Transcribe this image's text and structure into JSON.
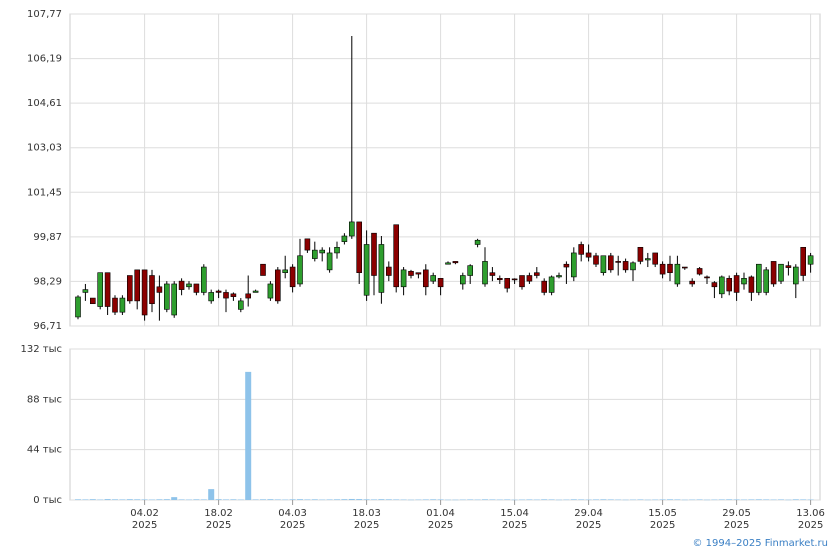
{
  "chart_data": {
    "type": "candlestick",
    "categories": [
      "22.01.2025",
      "23.01.2025",
      "24.01.2025",
      "27.01.2025",
      "28.01.2025",
      "29.01.2025",
      "30.01.2025",
      "31.01.2025",
      "03.02.2025",
      "04.02.2025",
      "05.02.2025",
      "06.02.2025",
      "07.02.2025",
      "10.02.2025",
      "11.02.2025",
      "12.02.2025",
      "13.02.2025",
      "14.02.2025",
      "17.02.2025",
      "18.02.2025",
      "19.02.2025",
      "20.02.2025",
      "21.02.2025",
      "24.02.2025",
      "25.02.2025",
      "26.02.2025",
      "27.02.2025",
      "28.02.2025",
      "03.03.2025",
      "04.03.2025",
      "05.03.2025",
      "06.03.2025",
      "07.03.2025",
      "10.03.2025",
      "11.03.2025",
      "12.03.2025",
      "13.03.2025",
      "14.03.2025",
      "17.03.2025",
      "18.03.2025",
      "19.03.2025",
      "20.03.2025",
      "21.03.2025",
      "24.03.2025",
      "25.03.2025",
      "26.03.2025",
      "27.03.2025",
      "28.03.2025",
      "31.03.2025",
      "01.04.2025",
      "02.04.2025",
      "03.04.2025",
      "04.04.2025",
      "07.04.2025",
      "08.04.2025",
      "09.04.2025",
      "10.04.2025",
      "11.04.2025",
      "14.04.2025",
      "15.04.2025",
      "16.04.2025",
      "17.04.2025",
      "18.04.2025",
      "21.04.2025",
      "22.04.2025",
      "23.04.2025",
      "24.04.2025",
      "25.04.2025",
      "28.04.2025",
      "29.04.2025",
      "30.04.2025",
      "02.05.2025",
      "05.05.2025",
      "06.05.2025",
      "07.05.2025",
      "08.05.2025",
      "12.05.2025",
      "13.05.2025",
      "14.05.2025",
      "15.05.2025",
      "16.05.2025",
      "19.05.2025",
      "20.05.2025",
      "21.05.2025",
      "22.05.2025",
      "23.05.2025",
      "26.05.2025",
      "27.05.2025",
      "28.05.2025",
      "29.05.2025",
      "30.05.2025",
      "02.06.2025",
      "03.06.2025",
      "04.06.2025",
      "05.06.2025",
      "06.06.2025",
      "09.06.2025",
      "10.06.2025",
      "11.06.2025",
      "13.06.2025"
    ],
    "open": [
      97.03,
      97.9,
      97.7,
      97.4,
      98.6,
      97.7,
      97.2,
      98.5,
      98.7,
      98.7,
      98.5,
      98.1,
      97.3,
      97.1,
      98.3,
      98.1,
      98.2,
      97.9,
      97.6,
      97.95,
      97.9,
      97.85,
      97.3,
      97.85,
      97.9,
      98.9,
      97.7,
      98.7,
      98.6,
      98.8,
      98.2,
      99.8,
      99.1,
      99.3,
      98.7,
      99.3,
      99.7,
      99.9,
      100.4,
      97.8,
      100.0,
      97.9,
      98.8,
      100.3,
      98.1,
      98.65,
      98.6,
      98.7,
      98.3,
      98.4,
      98.9,
      99.0,
      98.2,
      98.5,
      99.6,
      98.2,
      98.6,
      98.4,
      98.4,
      98.38,
      98.5,
      98.5,
      98.6,
      98.3,
      97.9,
      98.45,
      98.9,
      98.45,
      99.6,
      99.3,
      99.2,
      98.6,
      99.2,
      99.0,
      99.0,
      98.7,
      99.5,
      99.05,
      99.3,
      98.9,
      98.9,
      98.2,
      98.8,
      98.3,
      98.75,
      98.45,
      98.25,
      97.85,
      98.4,
      98.5,
      98.2,
      98.45,
      97.9,
      97.9,
      99.0,
      98.3,
      98.85,
      98.2,
      99.5,
      98.9
    ],
    "high": [
      97.8,
      98.2,
      97.7,
      98.6,
      98.6,
      97.8,
      97.8,
      98.5,
      98.7,
      98.7,
      98.7,
      98.5,
      98.3,
      98.3,
      98.4,
      98.3,
      98.2,
      98.9,
      98.0,
      98.0,
      98.0,
      97.9,
      97.7,
      98.5,
      98.0,
      98.9,
      98.3,
      98.8,
      99.2,
      98.9,
      99.8,
      99.8,
      99.7,
      99.5,
      99.5,
      99.7,
      100.0,
      106.99,
      100.4,
      100.1,
      100.0,
      99.9,
      99.0,
      100.3,
      98.8,
      98.7,
      98.6,
      98.9,
      98.6,
      98.4,
      99.0,
      99.0,
      98.6,
      98.9,
      99.8,
      99.5,
      98.8,
      98.5,
      98.4,
      98.4,
      98.5,
      98.6,
      98.8,
      98.4,
      98.5,
      98.6,
      99.0,
      99.5,
      99.7,
      99.6,
      99.3,
      99.2,
      99.3,
      99.2,
      99.1,
      99.0,
      99.5,
      99.3,
      99.3,
      99.0,
      99.2,
      99.2,
      98.8,
      98.4,
      98.8,
      98.5,
      98.3,
      98.5,
      98.5,
      98.6,
      98.6,
      98.5,
      98.9,
      98.8,
      99.0,
      98.9,
      99.0,
      98.9,
      99.5,
      99.3
    ],
    "low": [
      96.95,
      97.6,
      97.5,
      97.3,
      97.1,
      97.1,
      97.1,
      97.5,
      97.3,
      96.9,
      97.2,
      96.9,
      97.2,
      97.0,
      97.8,
      98.0,
      97.8,
      97.8,
      97.5,
      97.7,
      97.2,
      97.6,
      97.2,
      97.4,
      97.9,
      98.5,
      97.6,
      97.5,
      98.4,
      97.9,
      98.1,
      99.3,
      99.0,
      99.0,
      98.6,
      99.1,
      99.6,
      99.8,
      98.2,
      97.6,
      97.8,
      97.5,
      98.3,
      97.9,
      97.8,
      98.4,
      98.4,
      97.8,
      98.2,
      97.8,
      98.9,
      98.9,
      98.0,
      98.2,
      99.5,
      98.1,
      98.3,
      98.2,
      97.9,
      98.2,
      98.0,
      98.2,
      98.4,
      97.8,
      97.8,
      98.4,
      98.2,
      98.3,
      99.0,
      99.0,
      98.8,
      98.5,
      98.6,
      98.5,
      98.6,
      98.3,
      98.9,
      98.8,
      98.8,
      98.4,
      98.3,
      98.1,
      98.7,
      98.1,
      98.5,
      98.2,
      97.7,
      97.7,
      97.8,
      97.6,
      98.0,
      97.6,
      97.8,
      97.8,
      98.1,
      98.2,
      98.5,
      97.7,
      98.3,
      98.6
    ],
    "close": [
      97.74,
      98.0,
      97.5,
      98.6,
      97.4,
      97.2,
      97.7,
      97.6,
      97.6,
      97.1,
      97.5,
      97.9,
      98.2,
      98.2,
      98.0,
      98.2,
      97.9,
      98.8,
      97.9,
      97.9,
      97.7,
      97.75,
      97.6,
      97.7,
      97.95,
      98.5,
      98.2,
      97.6,
      98.7,
      98.1,
      99.2,
      99.4,
      99.4,
      99.4,
      99.3,
      99.5,
      99.9,
      100.4,
      98.6,
      99.6,
      98.5,
      99.6,
      98.5,
      98.1,
      98.7,
      98.5,
      98.55,
      98.1,
      98.5,
      98.1,
      98.95,
      98.95,
      98.5,
      98.85,
      99.75,
      99.0,
      98.5,
      98.35,
      98.05,
      98.35,
      98.1,
      98.3,
      98.5,
      97.9,
      98.45,
      98.5,
      98.8,
      99.3,
      99.25,
      99.15,
      98.9,
      99.2,
      98.7,
      98.98,
      98.7,
      98.95,
      99.0,
      99.1,
      98.9,
      98.55,
      98.6,
      98.9,
      98.77,
      98.2,
      98.55,
      98.42,
      98.1,
      98.45,
      97.95,
      97.9,
      98.4,
      97.9,
      98.9,
      98.7,
      98.2,
      98.9,
      98.78,
      98.8,
      98.5,
      99.2
    ],
    "up_color": "#2e9e2e",
    "down_color": "#8b0000",
    "ylim": [
      96.71,
      107.77
    ],
    "yticks": [
      {
        "value": 96.71,
        "label": "96,71"
      },
      {
        "value": 98.29,
        "label": "98,29"
      },
      {
        "value": 99.87,
        "label": "99,87"
      },
      {
        "value": 101.45,
        "label": "101,45"
      },
      {
        "value": 103.03,
        "label": "103,03"
      },
      {
        "value": 104.61,
        "label": "104,61"
      },
      {
        "value": 106.19,
        "label": "106,19"
      },
      {
        "value": 107.77,
        "label": "107,77"
      }
    ],
    "xticks": [
      {
        "value": "04.02.2025",
        "label": [
          "04.02",
          "2025"
        ]
      },
      {
        "value": "18.02.2025",
        "label": [
          "18.02",
          "2025"
        ]
      },
      {
        "value": "04.03.2025",
        "label": [
          "04.03",
          "2025"
        ]
      },
      {
        "value": "18.03.2025",
        "label": [
          "18.03",
          "2025"
        ]
      },
      {
        "value": "01.04.2025",
        "label": [
          "01.04",
          "2025"
        ]
      },
      {
        "value": "15.04.2025",
        "label": [
          "15.04",
          "2025"
        ]
      },
      {
        "value": "29.04.2025",
        "label": [
          "29.04",
          "2025"
        ]
      },
      {
        "value": "15.05.2025",
        "label": [
          "15.05",
          "2025"
        ]
      },
      {
        "value": "29.05.2025",
        "label": [
          "29.05",
          "2025"
        ]
      },
      {
        "value": "13.06.2025",
        "label": [
          "13.06",
          "2025"
        ]
      }
    ],
    "grid": true,
    "volume": {
      "color": "#8ec3ea",
      "values": [
        600,
        500,
        700,
        400,
        800,
        600,
        500,
        700,
        600,
        500,
        400,
        600,
        700,
        2500,
        500,
        400,
        600,
        500,
        9500,
        700,
        500,
        600,
        400,
        112000,
        500,
        600,
        700,
        500,
        400,
        600,
        700,
        500,
        600,
        400,
        500,
        600,
        700,
        900,
        800,
        600,
        500,
        700,
        600,
        500,
        400,
        300,
        400,
        500,
        600,
        500,
        300,
        300,
        400,
        500,
        400,
        600,
        500,
        400,
        500,
        300,
        400,
        500,
        400,
        600,
        500,
        300,
        400,
        600,
        500,
        400,
        500,
        600,
        500,
        400,
        300,
        400,
        500,
        300,
        400,
        500,
        600,
        500,
        300,
        400,
        500,
        300,
        400,
        500,
        600,
        500,
        400,
        500,
        600,
        500,
        400,
        500,
        300,
        600,
        500,
        400
      ],
      "ylim": [
        0,
        132000
      ],
      "yticks": [
        {
          "value": 0,
          "label": "0 тыс"
        },
        {
          "value": 44000,
          "label": "44 тыс"
        },
        {
          "value": 88000,
          "label": "88 тыс"
        },
        {
          "value": 132000,
          "label": "132 тыс"
        }
      ]
    }
  },
  "credit": "© 1994–2025 Finmarket.ru"
}
